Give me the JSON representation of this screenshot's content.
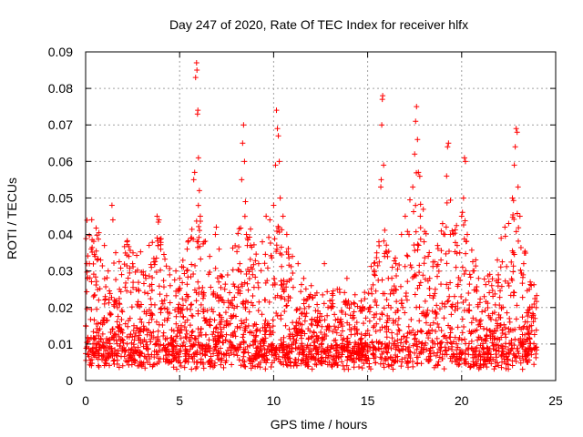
{
  "chart_data": {
    "type": "scatter",
    "title": "Day 247 of 2020, Rate Of TEC Index for receiver hlfx",
    "xlabel": "GPS time / hours",
    "ylabel": "ROTI / TECUs",
    "xlim": [
      0,
      25
    ],
    "ylim": [
      0,
      0.09
    ],
    "xticks": [
      "0",
      "5",
      "10",
      "15",
      "20",
      "25"
    ],
    "yticks": [
      "0",
      "0.01",
      "0.02",
      "0.03",
      "0.04",
      "0.05",
      "0.06",
      "0.07",
      "0.08",
      "0.09"
    ],
    "grid": true,
    "marker": "plus",
    "color": "#ff0000",
    "series": [
      {
        "name": "",
        "points": [
          [
            0.0,
            0.015
          ],
          [
            0.1,
            0.028
          ],
          [
            0.2,
            0.032
          ],
          [
            0.3,
            0.036
          ],
          [
            0.5,
            0.034
          ],
          [
            0.8,
            0.033
          ],
          [
            1.0,
            0.037
          ],
          [
            1.2,
            0.03
          ],
          [
            1.4,
            0.048
          ],
          [
            1.45,
            0.044
          ],
          [
            1.6,
            0.035
          ],
          [
            1.8,
            0.025
          ],
          [
            2.2,
            0.038
          ],
          [
            2.3,
            0.034
          ],
          [
            2.5,
            0.032
          ],
          [
            2.8,
            0.025
          ],
          [
            3.2,
            0.028
          ],
          [
            3.5,
            0.031
          ],
          [
            3.8,
            0.045
          ],
          [
            3.9,
            0.044
          ],
          [
            3.85,
            0.037
          ],
          [
            4.2,
            0.022
          ],
          [
            4.5,
            0.026
          ],
          [
            4.8,
            0.03
          ],
          [
            5.0,
            0.028
          ],
          [
            5.2,
            0.031
          ],
          [
            5.4,
            0.036
          ],
          [
            5.6,
            0.039
          ],
          [
            5.75,
            0.055
          ],
          [
            5.8,
            0.057
          ],
          [
            5.85,
            0.083
          ],
          [
            5.9,
            0.087
          ],
          [
            5.92,
            0.085
          ],
          [
            5.95,
            0.073
          ],
          [
            5.97,
            0.074
          ],
          [
            6.0,
            0.061
          ],
          [
            6.05,
            0.052
          ],
          [
            6.1,
            0.045
          ],
          [
            6.3,
            0.038
          ],
          [
            6.6,
            0.034
          ],
          [
            6.9,
            0.04
          ],
          [
            6.95,
            0.042
          ],
          [
            7.1,
            0.036
          ],
          [
            7.4,
            0.025
          ],
          [
            7.8,
            0.022
          ],
          [
            8.1,
            0.024
          ],
          [
            8.3,
            0.055
          ],
          [
            8.35,
            0.065
          ],
          [
            8.4,
            0.07
          ],
          [
            8.45,
            0.06
          ],
          [
            8.5,
            0.049
          ],
          [
            8.55,
            0.04
          ],
          [
            8.6,
            0.037
          ],
          [
            8.8,
            0.031
          ],
          [
            9.2,
            0.032
          ],
          [
            9.4,
            0.038
          ],
          [
            9.6,
            0.045
          ],
          [
            9.8,
            0.044
          ],
          [
            10.0,
            0.048
          ],
          [
            10.1,
            0.059
          ],
          [
            10.15,
            0.074
          ],
          [
            10.2,
            0.069
          ],
          [
            10.25,
            0.067
          ],
          [
            10.3,
            0.06
          ],
          [
            10.35,
            0.05
          ],
          [
            10.5,
            0.045
          ],
          [
            10.7,
            0.04
          ],
          [
            11.0,
            0.034
          ],
          [
            11.3,
            0.032
          ],
          [
            11.6,
            0.028
          ],
          [
            12.0,
            0.026
          ],
          [
            12.3,
            0.024
          ],
          [
            12.7,
            0.032
          ],
          [
            13.1,
            0.022
          ],
          [
            13.5,
            0.025
          ],
          [
            13.9,
            0.028
          ],
          [
            14.3,
            0.021
          ],
          [
            14.7,
            0.019
          ],
          [
            15.1,
            0.02
          ],
          [
            15.4,
            0.022
          ],
          [
            15.6,
            0.038
          ],
          [
            15.7,
            0.053
          ],
          [
            15.72,
            0.055
          ],
          [
            15.75,
            0.07
          ],
          [
            15.78,
            0.077
          ],
          [
            15.8,
            0.078
          ],
          [
            15.85,
            0.059
          ],
          [
            15.9,
            0.034
          ],
          [
            16.1,
            0.028
          ],
          [
            16.5,
            0.032
          ],
          [
            16.8,
            0.04
          ],
          [
            17.0,
            0.045
          ],
          [
            17.2,
            0.04
          ],
          [
            17.4,
            0.053
          ],
          [
            17.5,
            0.062
          ],
          [
            17.55,
            0.071
          ],
          [
            17.6,
            0.075
          ],
          [
            17.65,
            0.066
          ],
          [
            17.7,
            0.057
          ],
          [
            17.8,
            0.045
          ],
          [
            18.0,
            0.038
          ],
          [
            18.3,
            0.028
          ],
          [
            18.6,
            0.025
          ],
          [
            18.9,
            0.033
          ],
          [
            19.1,
            0.04
          ],
          [
            19.2,
            0.056
          ],
          [
            19.25,
            0.064
          ],
          [
            19.3,
            0.065
          ],
          [
            19.4,
            0.04
          ],
          [
            19.7,
            0.031
          ],
          [
            19.9,
            0.035
          ],
          [
            20.0,
            0.045
          ],
          [
            20.1,
            0.05
          ],
          [
            20.15,
            0.061
          ],
          [
            20.2,
            0.06
          ],
          [
            20.3,
            0.04
          ],
          [
            20.6,
            0.03
          ],
          [
            20.9,
            0.028
          ],
          [
            21.2,
            0.023
          ],
          [
            21.6,
            0.026
          ],
          [
            21.9,
            0.033
          ],
          [
            22.1,
            0.039
          ],
          [
            22.3,
            0.042
          ],
          [
            22.5,
            0.043
          ],
          [
            22.7,
            0.05
          ],
          [
            22.8,
            0.059
          ],
          [
            22.85,
            0.064
          ],
          [
            22.9,
            0.069
          ],
          [
            22.95,
            0.068
          ],
          [
            23.0,
            0.053
          ],
          [
            23.1,
            0.045
          ],
          [
            23.3,
            0.032
          ],
          [
            23.6,
            0.025
          ],
          [
            23.9,
            0.017
          ]
        ]
      }
    ]
  }
}
